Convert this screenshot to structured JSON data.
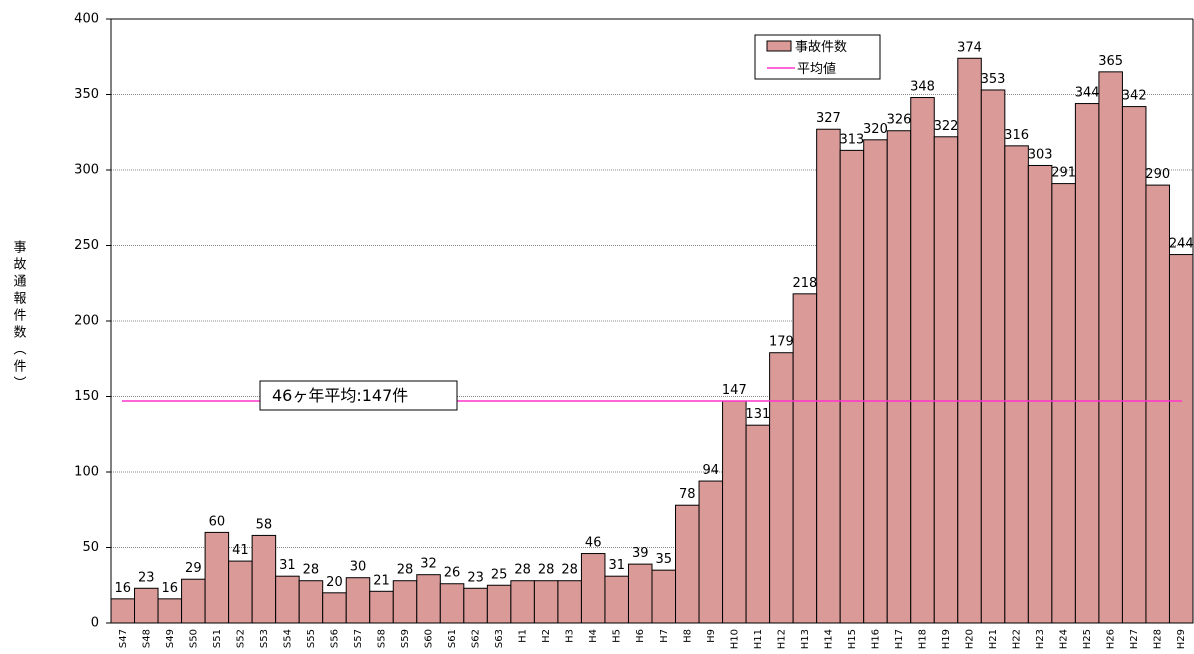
{
  "chart_data": {
    "type": "bar",
    "y_label": "事故通報件数（件）",
    "categories": [
      "S47",
      "S48",
      "S49",
      "S50",
      "S51",
      "S52",
      "S53",
      "S54",
      "S55",
      "S56",
      "S57",
      "S58",
      "S59",
      "S60",
      "S61",
      "S62",
      "S63",
      "H1",
      "H2",
      "H3",
      "H4",
      "H5",
      "H6",
      "H7",
      "H8",
      "H9",
      "H10",
      "H11",
      "H12",
      "H13",
      "H14",
      "H15",
      "H16",
      "H17",
      "H18",
      "H19",
      "H20",
      "H21",
      "H22",
      "H23",
      "H24",
      "H25",
      "H26",
      "H27",
      "H28",
      "H29"
    ],
    "series": [
      {
        "name": "事故件数",
        "color": "#d99a98",
        "values": [
          16,
          23,
          16,
          29,
          60,
          41,
          58,
          31,
          28,
          20,
          30,
          21,
          28,
          32,
          26,
          23,
          25,
          28,
          28,
          28,
          46,
          31,
          39,
          35,
          78,
          94,
          147,
          131,
          179,
          218,
          327,
          313,
          320,
          326,
          348,
          322,
          374,
          353,
          316,
          303,
          291,
          344,
          365,
          342,
          290,
          244
        ]
      }
    ],
    "average": {
      "name": "平均値",
      "value": 147,
      "color": "#ff33cc"
    },
    "annotation": "46ヶ年平均:147件",
    "ylim": [
      0,
      400
    ],
    "yticks": [
      0,
      50,
      100,
      150,
      200,
      250,
      300,
      350,
      400
    ],
    "grid": true
  }
}
